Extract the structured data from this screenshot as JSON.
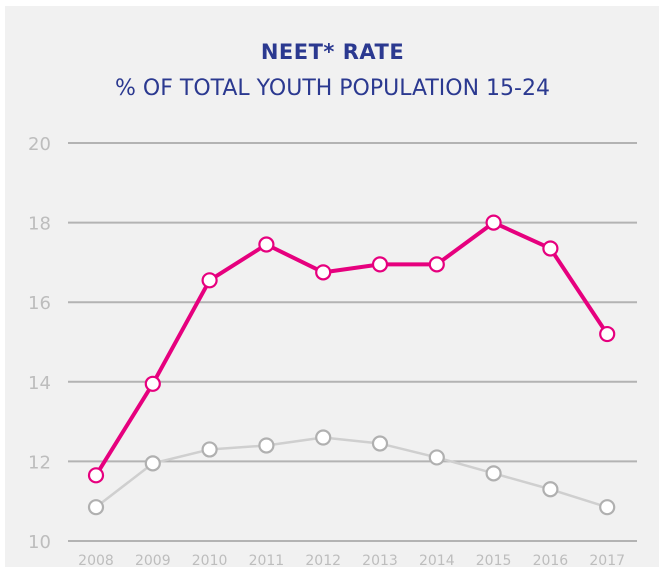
{
  "chart_data": {
    "type": "line",
    "title": "NEET* RATE",
    "subtitle": "% OF TOTAL YOUTH POPULATION 15-24",
    "xlabel": "",
    "ylabel": "",
    "categories": [
      "2008",
      "2009",
      "2010",
      "2011",
      "2012",
      "2013",
      "2014",
      "2015",
      "2016",
      "2017"
    ],
    "y_ticks": [
      "10",
      "12",
      "14",
      "16",
      "18",
      "20"
    ],
    "ylim": [
      10,
      20
    ],
    "grid": true,
    "series": [
      {
        "color": "#e6007e",
        "values": [
          11.65,
          13.95,
          16.55,
          17.45,
          16.75,
          16.95,
          16.95,
          18.0,
          17.35,
          15.2
        ]
      },
      {
        "color": "#cfcfcf",
        "values": [
          10.85,
          11.95,
          12.3,
          12.4,
          12.6,
          12.45,
          12.1,
          11.7,
          11.3,
          10.85
        ]
      }
    ]
  }
}
